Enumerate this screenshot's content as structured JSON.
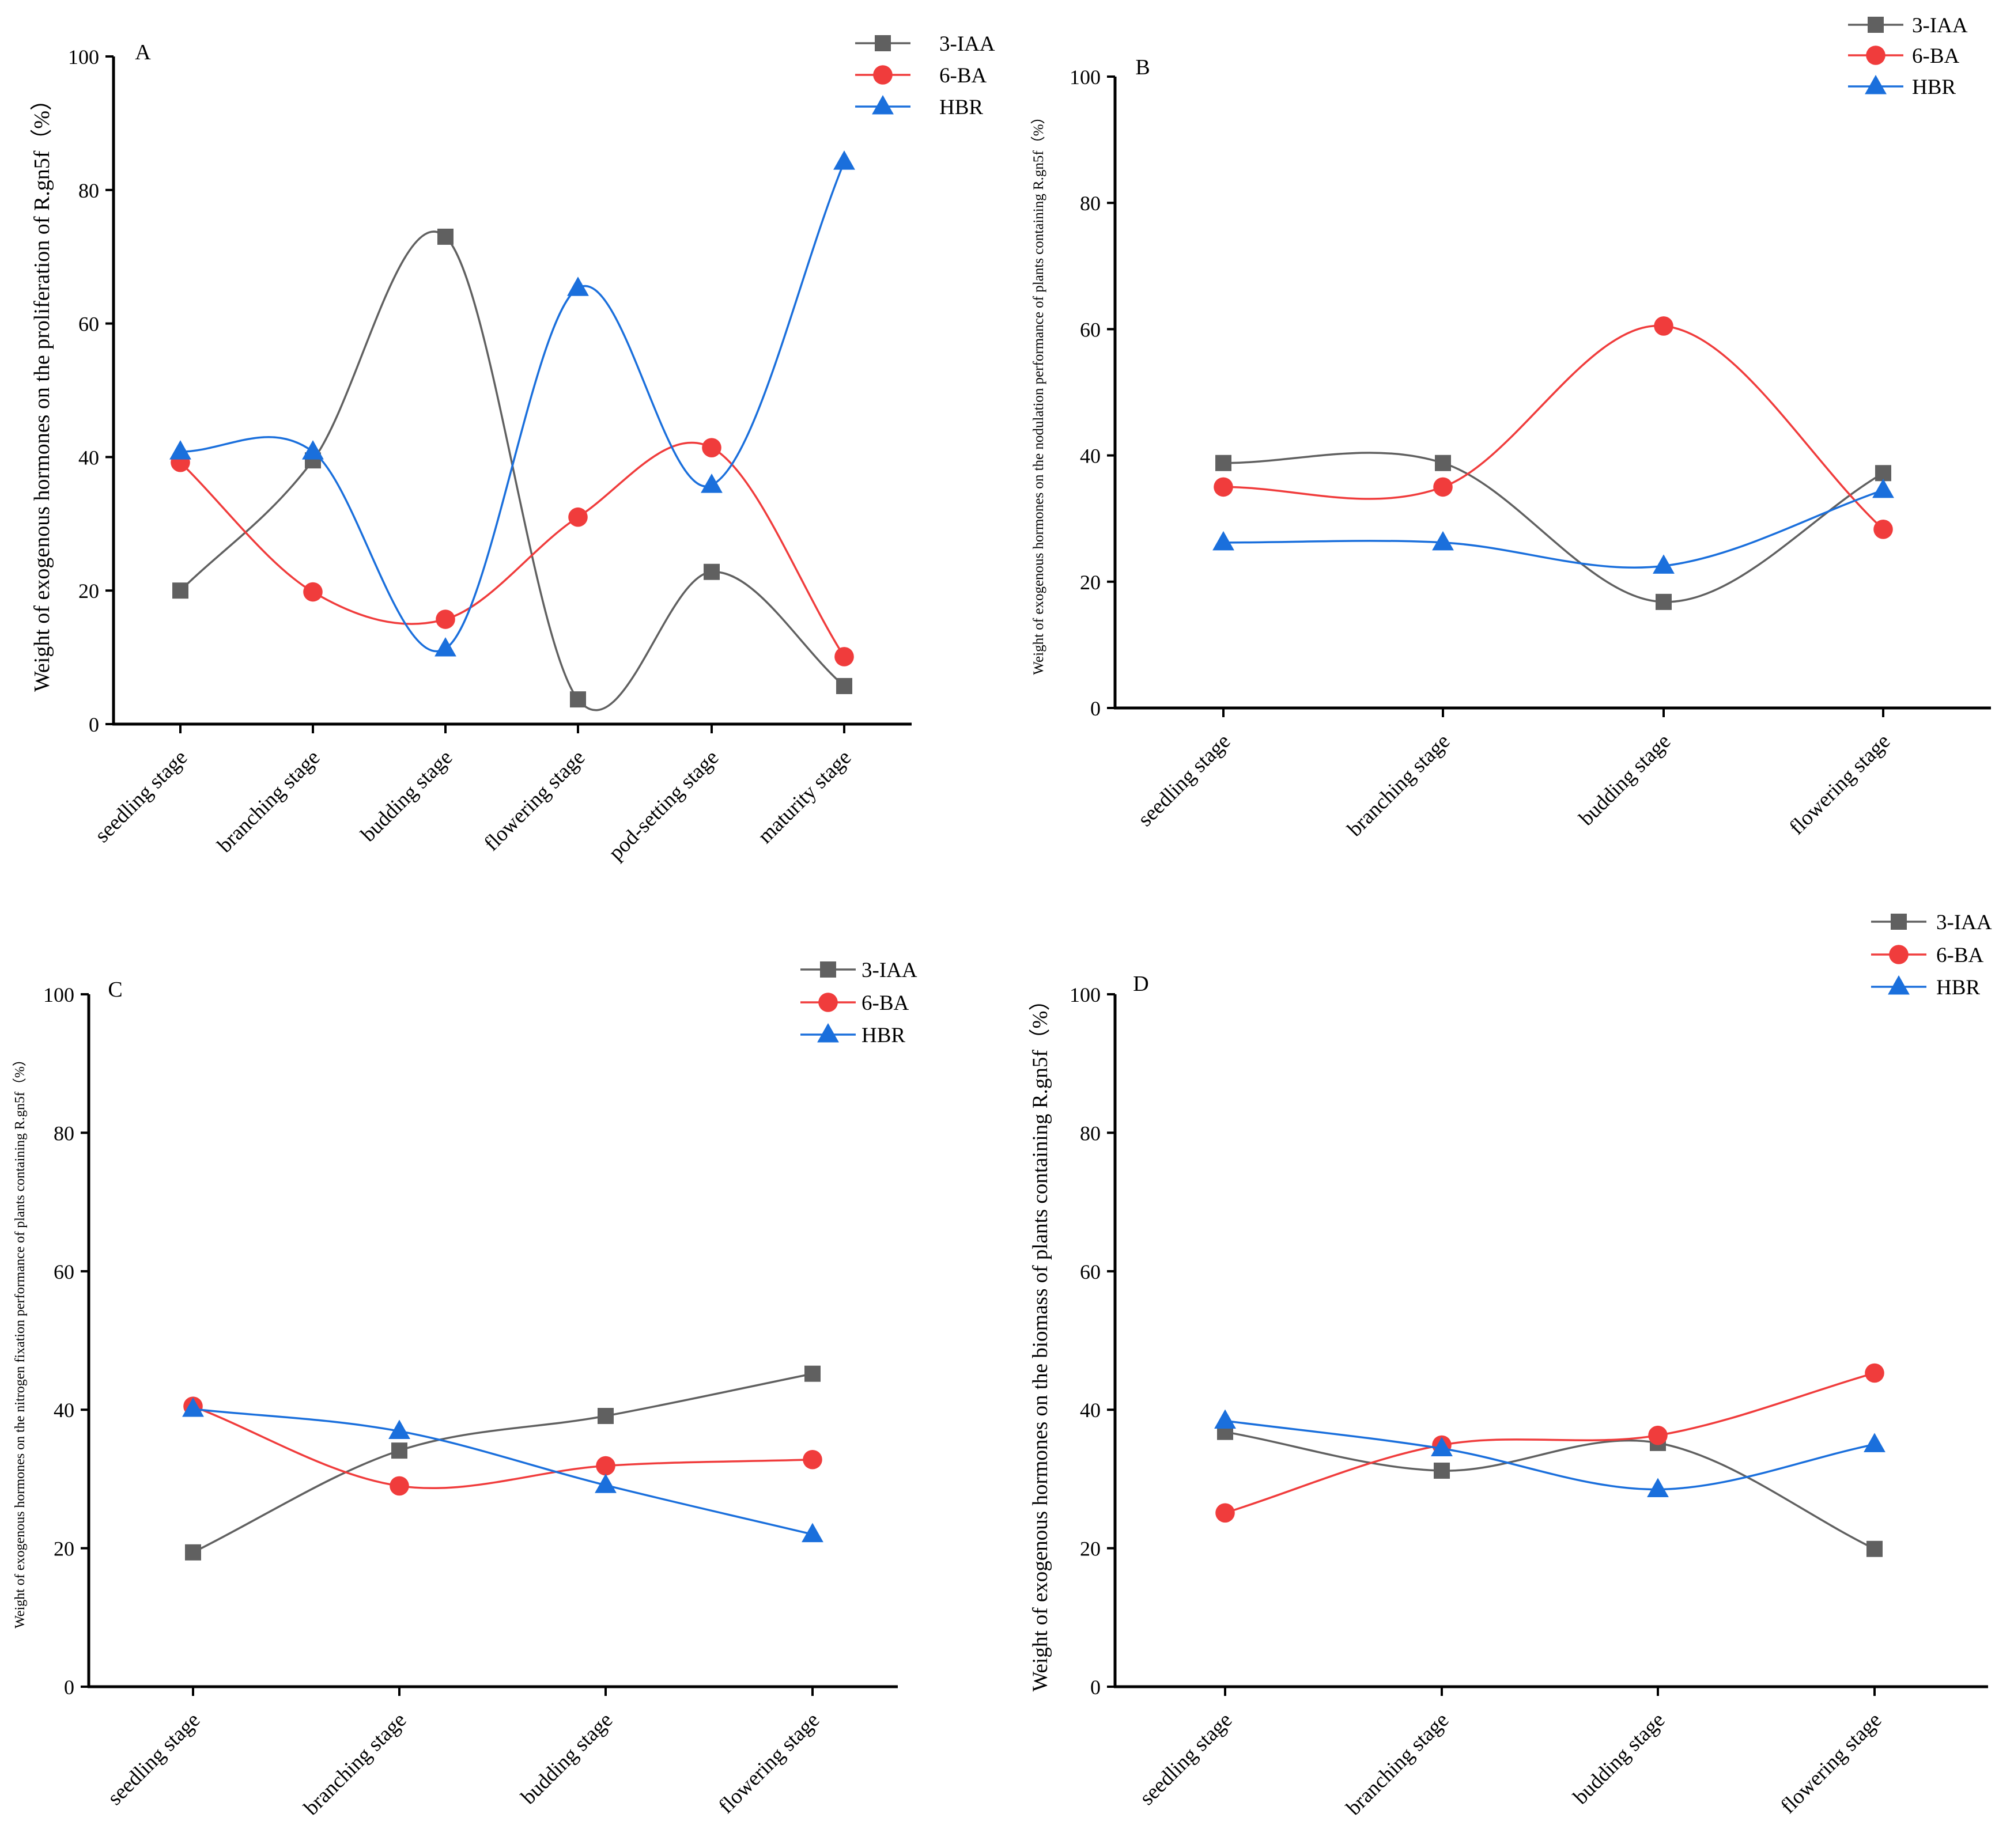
{
  "colors": {
    "3-IAA": "#606060",
    "6-BA": "#f03c3c",
    "HBR": "#1a6fdc",
    "axis": "#000000"
  },
  "chart_data": [
    {
      "panel": "A",
      "type": "line",
      "smooth": true,
      "categories": [
        "seedling stage",
        "branching stage",
        "budding stage",
        "flowering stage",
        "pod-setting stage",
        "maturity stage"
      ],
      "series": [
        {
          "name": "3-IAA",
          "marker": "square",
          "values": [
            20,
            39.5,
            73,
            3.7,
            22.8,
            5.7
          ]
        },
        {
          "name": "6-BA",
          "marker": "circle",
          "values": [
            39.2,
            19.8,
            15.7,
            31,
            41.4,
            10.1
          ]
        },
        {
          "name": "HBR",
          "marker": "triangle",
          "values": [
            40.8,
            40.8,
            11.3,
            65.3,
            35.8,
            84.2
          ]
        }
      ],
      "ylim": [
        0,
        100
      ],
      "yticks": [
        0,
        20,
        40,
        60,
        80,
        100
      ],
      "ylabel": "Weight of exogenous hormones on the proliferation of R.gn5f（%）",
      "xlabel": "",
      "legend": "top-right"
    },
    {
      "panel": "B",
      "type": "line",
      "smooth": true,
      "categories": [
        "seedling stage",
        "branching stage",
        "budding stage",
        "flowering stage"
      ],
      "series": [
        {
          "name": "3-IAA",
          "marker": "square",
          "values": [
            38.8,
            38.8,
            16.8,
            37.2
          ]
        },
        {
          "name": "6-BA",
          "marker": "circle",
          "values": [
            35,
            35,
            60.5,
            28.3
          ]
        },
        {
          "name": "HBR",
          "marker": "triangle",
          "values": [
            26.2,
            26.2,
            22.5,
            34.5
          ]
        }
      ],
      "ylim": [
        0,
        100
      ],
      "yticks": [
        0,
        20,
        40,
        60,
        80,
        100
      ],
      "ylabel": "Weight of exogenous hormones on the nodulation performance of plants containing R.gn5f（%）",
      "xlabel": "",
      "legend": "top-right"
    },
    {
      "panel": "C",
      "type": "line",
      "smooth": true,
      "categories": [
        "seedling stage",
        "branching stage",
        "budding stage",
        "flowering stage"
      ],
      "series": [
        {
          "name": "3-IAA",
          "marker": "square",
          "values": [
            19.4,
            34.1,
            39.1,
            45.2
          ]
        },
        {
          "name": "6-BA",
          "marker": "circle",
          "values": [
            40.5,
            29,
            31.9,
            32.8
          ]
        },
        {
          "name": "HBR",
          "marker": "triangle",
          "values": [
            40.1,
            36.9,
            29.1,
            22
          ]
        }
      ],
      "ylim": [
        0,
        100
      ],
      "yticks": [
        0,
        20,
        40,
        60,
        80,
        100
      ],
      "ylabel": "Weight of exogenous hormones on the nitrogen fixation performance of plants containing R.gn5f（%）",
      "xlabel": "",
      "legend": "top-right"
    },
    {
      "panel": "D",
      "type": "line",
      "smooth": true,
      "categories": [
        "seedling stage",
        "branching stage",
        "budding stage",
        "flowering stage"
      ],
      "series": [
        {
          "name": "3-IAA",
          "marker": "square",
          "values": [
            36.8,
            31.2,
            35.2,
            19.9
          ]
        },
        {
          "name": "6-BA",
          "marker": "circle",
          "values": [
            25.1,
            34.9,
            36.3,
            45.3
          ]
        },
        {
          "name": "HBR",
          "marker": "triangle",
          "values": [
            38.4,
            34.4,
            28.5,
            35
          ]
        }
      ],
      "ylim": [
        0,
        100
      ],
      "yticks": [
        0,
        20,
        40,
        60,
        80,
        100
      ],
      "ylabel": "Weight of exogenous hormones on the biomass of plants containing R.gn5f（%）",
      "xlabel": "",
      "legend": "top-right"
    }
  ]
}
